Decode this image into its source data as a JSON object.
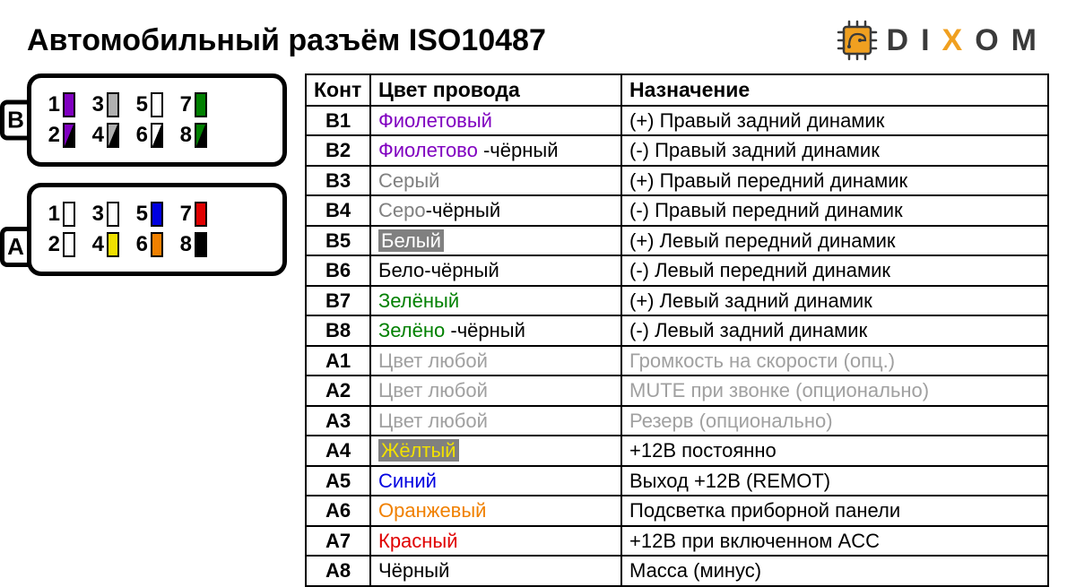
{
  "title": "Автомобильный разъём ISO10487",
  "logo": {
    "text_d": "D",
    "text_i": "I",
    "text_x": "X",
    "text_o": "O",
    "text_m": "M",
    "chip_color": "#f0a020",
    "chip_stroke": "#3a3a3a"
  },
  "connectors": {
    "B": {
      "label": "B",
      "rows": [
        [
          {
            "n": "1",
            "type": "solid",
            "fill": "#8000c0"
          },
          {
            "n": "3",
            "type": "solid",
            "fill": "#b0b0b0"
          },
          {
            "n": "5",
            "type": "empty"
          },
          {
            "n": "7",
            "type": "solid",
            "fill": "#008000"
          }
        ],
        [
          {
            "n": "2",
            "type": "diag",
            "c1": "#8000c0",
            "c2": "#000000"
          },
          {
            "n": "4",
            "type": "diag",
            "c1": "#b0b0b0",
            "c2": "#000000"
          },
          {
            "n": "6",
            "type": "diag",
            "c1": "#ffffff",
            "c2": "#000000"
          },
          {
            "n": "8",
            "type": "diag",
            "c1": "#008000",
            "c2": "#000000"
          }
        ]
      ]
    },
    "A": {
      "label": "A",
      "rows": [
        [
          {
            "n": "1",
            "type": "empty"
          },
          {
            "n": "3",
            "type": "empty"
          },
          {
            "n": "5",
            "type": "solid",
            "fill": "#0000e0"
          },
          {
            "n": "7",
            "type": "solid",
            "fill": "#e00000"
          }
        ],
        [
          {
            "n": "2",
            "type": "empty"
          },
          {
            "n": "4",
            "type": "solid",
            "fill": "#f0e000"
          },
          {
            "n": "6",
            "type": "solid",
            "fill": "#f08000"
          },
          {
            "n": "8",
            "type": "solid",
            "fill": "#000000"
          }
        ]
      ]
    }
  },
  "table": {
    "headers": [
      "Конт",
      "Цвет провода",
      "Назначение"
    ],
    "font_size": 22,
    "border_color": "#000000",
    "rows": [
      {
        "id": "B1",
        "color": [
          {
            "t": "Фиолетовый",
            "c": "#8000c0"
          }
        ],
        "desc": "(+) Правый задний динамик",
        "muted": false
      },
      {
        "id": "B2",
        "color": [
          {
            "t": "Фиолетово",
            "c": "#8000c0"
          },
          {
            "t": " -чёрный",
            "c": "#000000"
          }
        ],
        "desc": "(-)  Правый задний динамик",
        "muted": false
      },
      {
        "id": "B3",
        "color": [
          {
            "t": "Серый",
            "c": "#808080"
          }
        ],
        "desc": "(+) Правый передний динамик",
        "muted": false
      },
      {
        "id": "B4",
        "color": [
          {
            "t": "Серо",
            "c": "#808080"
          },
          {
            "t": "-чёрный",
            "c": "#000000"
          }
        ],
        "desc": "(-)  Правый передний динамик",
        "muted": false
      },
      {
        "id": "B5",
        "color": [
          {
            "t": "Белый",
            "c": "#ffffff",
            "inv": true
          }
        ],
        "desc": "(+) Левый передний динамик",
        "muted": false
      },
      {
        "id": "B6",
        "color": [
          {
            "t": "Бело-чёрный",
            "c": "#000000"
          }
        ],
        "desc": "(-)  Левый передний динамик",
        "muted": false
      },
      {
        "id": "B7",
        "color": [
          {
            "t": "Зелёный",
            "c": "#008000"
          }
        ],
        "desc": "(+) Левый задний динамик",
        "muted": false
      },
      {
        "id": "B8",
        "color": [
          {
            "t": "Зелёно",
            "c": "#008000"
          },
          {
            "t": " -чёрный",
            "c": "#000000"
          }
        ],
        "desc": "(-)  Левый задний динамик",
        "muted": false
      },
      {
        "id": "A1",
        "color": [
          {
            "t": "Цвет любой",
            "c": "#a0a0a0"
          }
        ],
        "desc": "Громкость на скорости (опц.)",
        "muted": true
      },
      {
        "id": "A2",
        "color": [
          {
            "t": "Цвет любой",
            "c": "#a0a0a0"
          }
        ],
        "desc": "MUTE при звонке (опционально)",
        "muted": true
      },
      {
        "id": "A3",
        "color": [
          {
            "t": "Цвет любой",
            "c": "#a0a0a0"
          }
        ],
        "desc": "Резерв (опционально)",
        "muted": true
      },
      {
        "id": "A4",
        "color": [
          {
            "t": "Жёлтый",
            "c": "#f0e000",
            "inv": true
          }
        ],
        "desc": "+12В постоянно",
        "muted": false
      },
      {
        "id": "A5",
        "color": [
          {
            "t": "Синий",
            "c": "#0000e0"
          }
        ],
        "desc": "Выход +12В (REMOT)",
        "muted": false
      },
      {
        "id": "A6",
        "color": [
          {
            "t": "Оранжевый",
            "c": "#f08000"
          }
        ],
        "desc": "Подсветка приборной панели",
        "muted": false
      },
      {
        "id": "A7",
        "color": [
          {
            "t": "Красный",
            "c": "#e00000"
          }
        ],
        "desc": "+12В при включенном ACC",
        "muted": false
      },
      {
        "id": "A8",
        "color": [
          {
            "t": "Чёрный",
            "c": "#000000"
          }
        ],
        "desc": "Масса (минус)",
        "muted": false
      }
    ]
  }
}
